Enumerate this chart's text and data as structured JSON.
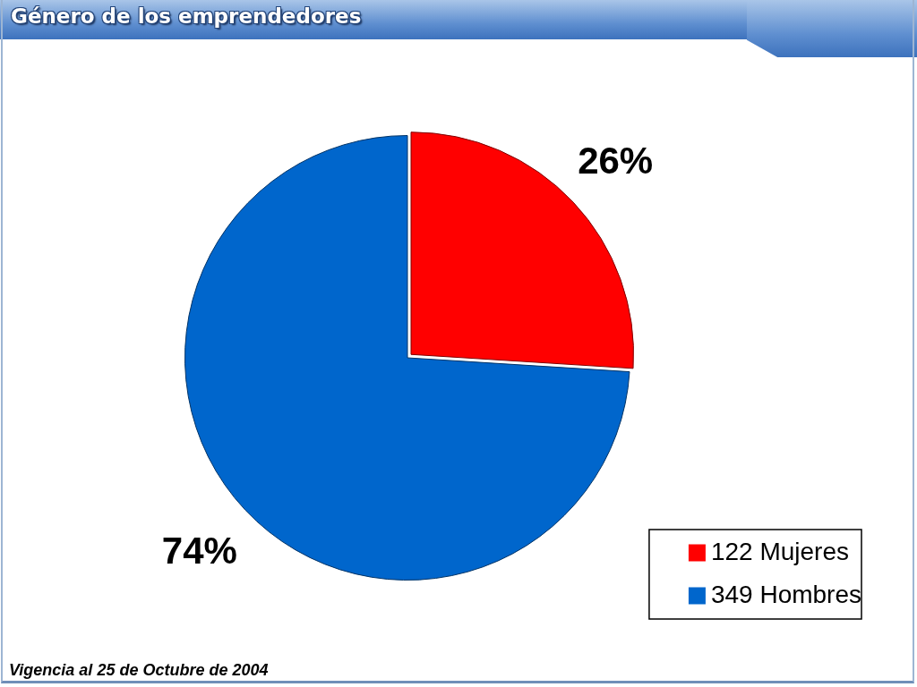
{
  "chart_data": {
    "type": "pie",
    "title": "Género de los emprendedores",
    "categories": [
      "122 Mujeres",
      "349 Hombres"
    ],
    "values": [
      26,
      74
    ],
    "value_labels": [
      "26%",
      "74%"
    ],
    "colors": [
      "#ff0000",
      "#0066cc"
    ],
    "legend": "bottom right",
    "annotations": [
      "Vigencia al 25 de Octubre de 2004"
    ]
  }
}
